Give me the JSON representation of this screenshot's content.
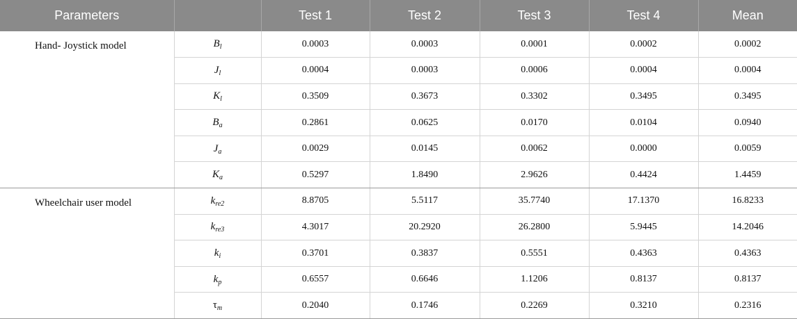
{
  "table": {
    "headers": [
      "Parameters",
      "",
      "Test 1",
      "Test 2",
      "Test 3",
      "Test 4",
      "Mean"
    ],
    "groups": [
      {
        "label": "Hand- Joystick model",
        "rows": [
          {
            "symbol": "B",
            "sub": "l",
            "values": [
              "0.0003",
              "0.0003",
              "0.0001",
              "0.0002",
              "0.0002"
            ]
          },
          {
            "symbol": "J",
            "sub": "l",
            "values": [
              "0.0004",
              "0.0003",
              "0.0006",
              "0.0004",
              "0.0004"
            ]
          },
          {
            "symbol": "K",
            "sub": "l",
            "values": [
              "0.3509",
              "0.3673",
              "0.3302",
              "0.3495",
              "0.3495"
            ]
          },
          {
            "symbol": "B",
            "sub": "a",
            "values": [
              "0.2861",
              "0.0625",
              "0.0170",
              "0.0104",
              "0.0940"
            ]
          },
          {
            "symbol": "J",
            "sub": "a",
            "values": [
              "0.0029",
              "0.0145",
              "0.0062",
              "0.0000",
              "0.0059"
            ]
          },
          {
            "symbol": "K",
            "sub": "a",
            "values": [
              "0.5297",
              "1.8490",
              "2.9626",
              "0.4424",
              "1.4459"
            ]
          }
        ]
      },
      {
        "label": "Wheelchair user model",
        "rows": [
          {
            "symbol": "k",
            "sub": "re2",
            "values": [
              "8.8705",
              "5.5117",
              "35.7740",
              "17.1370",
              "16.8233"
            ]
          },
          {
            "symbol": "k",
            "sub": "re3",
            "values": [
              "4.3017",
              "20.2920",
              "26.2800",
              "5.9445",
              "14.2046"
            ]
          },
          {
            "symbol": "k",
            "sub": "i",
            "values": [
              "0.3701",
              "0.3837",
              "0.5551",
              "0.4363",
              "0.4363"
            ]
          },
          {
            "symbol": "k",
            "sub": "p",
            "values": [
              "0.6557",
              "0.6646",
              "1.1206",
              "0.8137",
              "0.8137"
            ]
          },
          {
            "symbol": "τ",
            "sub": "m",
            "values": [
              "0.2040",
              "0.1746",
              "0.2269",
              "0.3210",
              "0.2316"
            ]
          }
        ]
      }
    ]
  }
}
